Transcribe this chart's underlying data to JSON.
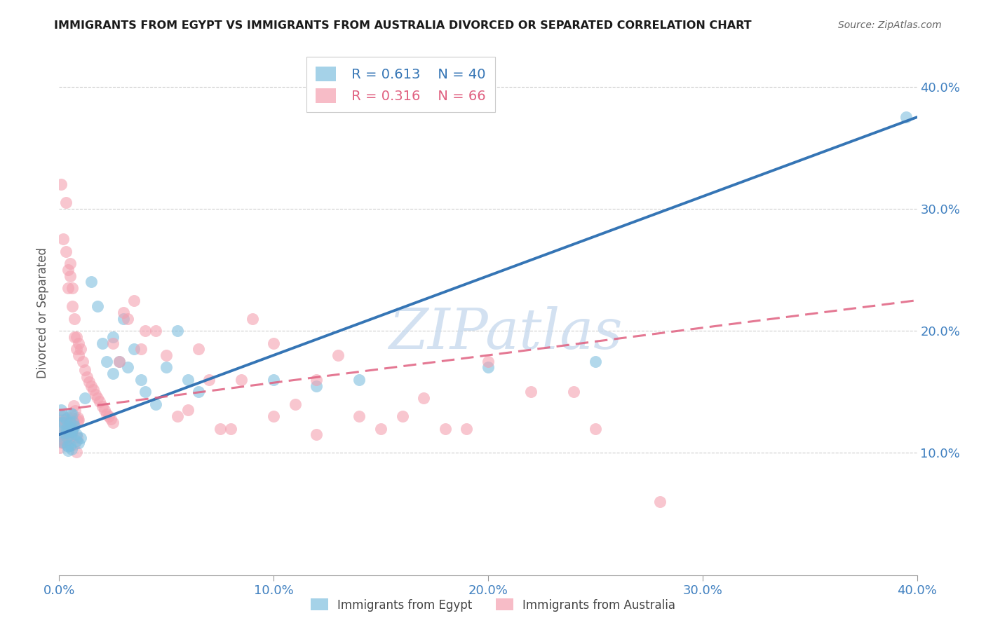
{
  "title": "IMMIGRANTS FROM EGYPT VS IMMIGRANTS FROM AUSTRALIA DIVORCED OR SEPARATED CORRELATION CHART",
  "source": "Source: ZipAtlas.com",
  "ylabel": "Divorced or Separated",
  "xlim": [
    0.0,
    0.4
  ],
  "ylim": [
    0.0,
    0.43
  ],
  "yticks": [
    0.1,
    0.2,
    0.3,
    0.4
  ],
  "ytick_labels": [
    "10.0%",
    "20.0%",
    "30.0%",
    "40.0%"
  ],
  "xticks": [
    0.0,
    0.1,
    0.2,
    0.3,
    0.4
  ],
  "xtick_labels": [
    "0.0%",
    "10.0%",
    "20.0%",
    "30.0%",
    "40.0%"
  ],
  "egypt_color": "#7fbfdf",
  "australia_color": "#f4a0b0",
  "egypt_R": 0.613,
  "egypt_N": 40,
  "australia_R": 0.316,
  "australia_N": 66,
  "legend_labels": [
    "Immigrants from Egypt",
    "Immigrants from Australia"
  ],
  "grid_color": "#cccccc",
  "egypt_line": [
    [
      0.0,
      0.115
    ],
    [
      0.4,
      0.375
    ]
  ],
  "australia_line": [
    [
      0.0,
      0.135
    ],
    [
      0.4,
      0.225
    ]
  ],
  "bg_color": "#ffffff",
  "egypt_scatter": [
    [
      0.001,
      0.135
    ],
    [
      0.002,
      0.13
    ],
    [
      0.002,
      0.125
    ],
    [
      0.003,
      0.128
    ],
    [
      0.003,
      0.12
    ],
    [
      0.004,
      0.122
    ],
    [
      0.004,
      0.118
    ],
    [
      0.005,
      0.125
    ],
    [
      0.005,
      0.115
    ],
    [
      0.006,
      0.12
    ],
    [
      0.006,
      0.118
    ],
    [
      0.007,
      0.122
    ],
    [
      0.008,
      0.115
    ],
    [
      0.008,
      0.11
    ],
    [
      0.009,
      0.108
    ],
    [
      0.01,
      0.112
    ],
    [
      0.012,
      0.145
    ],
    [
      0.015,
      0.24
    ],
    [
      0.018,
      0.22
    ],
    [
      0.02,
      0.19
    ],
    [
      0.022,
      0.175
    ],
    [
      0.025,
      0.165
    ],
    [
      0.025,
      0.195
    ],
    [
      0.028,
      0.175
    ],
    [
      0.03,
      0.21
    ],
    [
      0.032,
      0.17
    ],
    [
      0.035,
      0.185
    ],
    [
      0.038,
      0.16
    ],
    [
      0.04,
      0.15
    ],
    [
      0.045,
      0.14
    ],
    [
      0.05,
      0.17
    ],
    [
      0.055,
      0.2
    ],
    [
      0.06,
      0.16
    ],
    [
      0.065,
      0.15
    ],
    [
      0.1,
      0.16
    ],
    [
      0.12,
      0.155
    ],
    [
      0.14,
      0.16
    ],
    [
      0.2,
      0.17
    ],
    [
      0.25,
      0.175
    ],
    [
      0.395,
      0.375
    ]
  ],
  "australia_scatter": [
    [
      0.001,
      0.32
    ],
    [
      0.002,
      0.275
    ],
    [
      0.003,
      0.265
    ],
    [
      0.003,
      0.305
    ],
    [
      0.004,
      0.25
    ],
    [
      0.004,
      0.235
    ],
    [
      0.005,
      0.245
    ],
    [
      0.005,
      0.255
    ],
    [
      0.006,
      0.235
    ],
    [
      0.006,
      0.22
    ],
    [
      0.007,
      0.21
    ],
    [
      0.007,
      0.195
    ],
    [
      0.008,
      0.195
    ],
    [
      0.008,
      0.185
    ],
    [
      0.009,
      0.19
    ],
    [
      0.009,
      0.18
    ],
    [
      0.01,
      0.185
    ],
    [
      0.011,
      0.175
    ],
    [
      0.012,
      0.168
    ],
    [
      0.013,
      0.162
    ],
    [
      0.014,
      0.158
    ],
    [
      0.015,
      0.155
    ],
    [
      0.016,
      0.152
    ],
    [
      0.017,
      0.148
    ],
    [
      0.018,
      0.145
    ],
    [
      0.019,
      0.142
    ],
    [
      0.02,
      0.138
    ],
    [
      0.021,
      0.135
    ],
    [
      0.022,
      0.132
    ],
    [
      0.023,
      0.13
    ],
    [
      0.024,
      0.128
    ],
    [
      0.025,
      0.125
    ],
    [
      0.025,
      0.19
    ],
    [
      0.028,
      0.175
    ],
    [
      0.03,
      0.215
    ],
    [
      0.032,
      0.21
    ],
    [
      0.035,
      0.225
    ],
    [
      0.038,
      0.185
    ],
    [
      0.04,
      0.2
    ],
    [
      0.045,
      0.2
    ],
    [
      0.05,
      0.18
    ],
    [
      0.055,
      0.13
    ],
    [
      0.06,
      0.135
    ],
    [
      0.065,
      0.185
    ],
    [
      0.07,
      0.16
    ],
    [
      0.075,
      0.12
    ],
    [
      0.08,
      0.12
    ],
    [
      0.085,
      0.16
    ],
    [
      0.09,
      0.21
    ],
    [
      0.1,
      0.19
    ],
    [
      0.11,
      0.14
    ],
    [
      0.12,
      0.16
    ],
    [
      0.13,
      0.18
    ],
    [
      0.14,
      0.13
    ],
    [
      0.15,
      0.12
    ],
    [
      0.16,
      0.13
    ],
    [
      0.17,
      0.145
    ],
    [
      0.18,
      0.12
    ],
    [
      0.19,
      0.12
    ],
    [
      0.2,
      0.175
    ],
    [
      0.22,
      0.15
    ],
    [
      0.24,
      0.15
    ],
    [
      0.25,
      0.12
    ],
    [
      0.1,
      0.13
    ],
    [
      0.28,
      0.06
    ],
    [
      0.12,
      0.115
    ]
  ],
  "cluster_egypt": {
    "x_range": [
      0.0,
      0.007
    ],
    "y_range": [
      0.1,
      0.135
    ],
    "n": 12
  },
  "cluster_australia": {
    "x_range": [
      0.0,
      0.009
    ],
    "y_range": [
      0.1,
      0.14
    ],
    "n": 18
  }
}
